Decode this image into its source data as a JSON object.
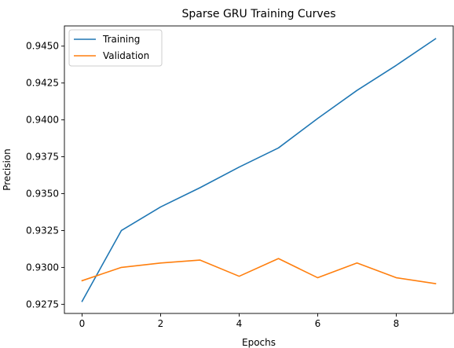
{
  "chart_data": {
    "type": "line",
    "title": "Sparse GRU Training Curves",
    "xlabel": "Epochs",
    "ylabel": "Precision",
    "xlim": [
      -0.45,
      9.45
    ],
    "ylim": [
      0.92688,
      0.94637
    ],
    "xticks": [
      0,
      2,
      4,
      6,
      8
    ],
    "yticks": [
      0.9275,
      0.93,
      0.9325,
      0.935,
      0.9375,
      0.94,
      0.9425,
      0.945
    ],
    "ytick_labels": [
      "0.9275",
      "0.9300",
      "0.9325",
      "0.9350",
      "0.9375",
      "0.9400",
      "0.9425",
      "0.9450"
    ],
    "xtick_labels": [
      "0",
      "2",
      "4",
      "6",
      "8"
    ],
    "grid": false,
    "legend_position": "upper-left",
    "x": [
      0,
      1,
      2,
      3,
      4,
      5,
      6,
      7,
      8,
      9
    ],
    "series": [
      {
        "name": "Training",
        "color": "#1f77b4",
        "values": [
          0.9277,
          0.9325,
          0.9341,
          0.9354,
          0.9368,
          0.9381,
          0.9401,
          0.942,
          0.9437,
          0.9455
        ]
      },
      {
        "name": "Validation",
        "color": "#ff7f0e",
        "values": [
          0.9291,
          0.93,
          0.9303,
          0.9305,
          0.9294,
          0.9306,
          0.9293,
          0.9303,
          0.9293,
          0.9289
        ]
      }
    ]
  }
}
